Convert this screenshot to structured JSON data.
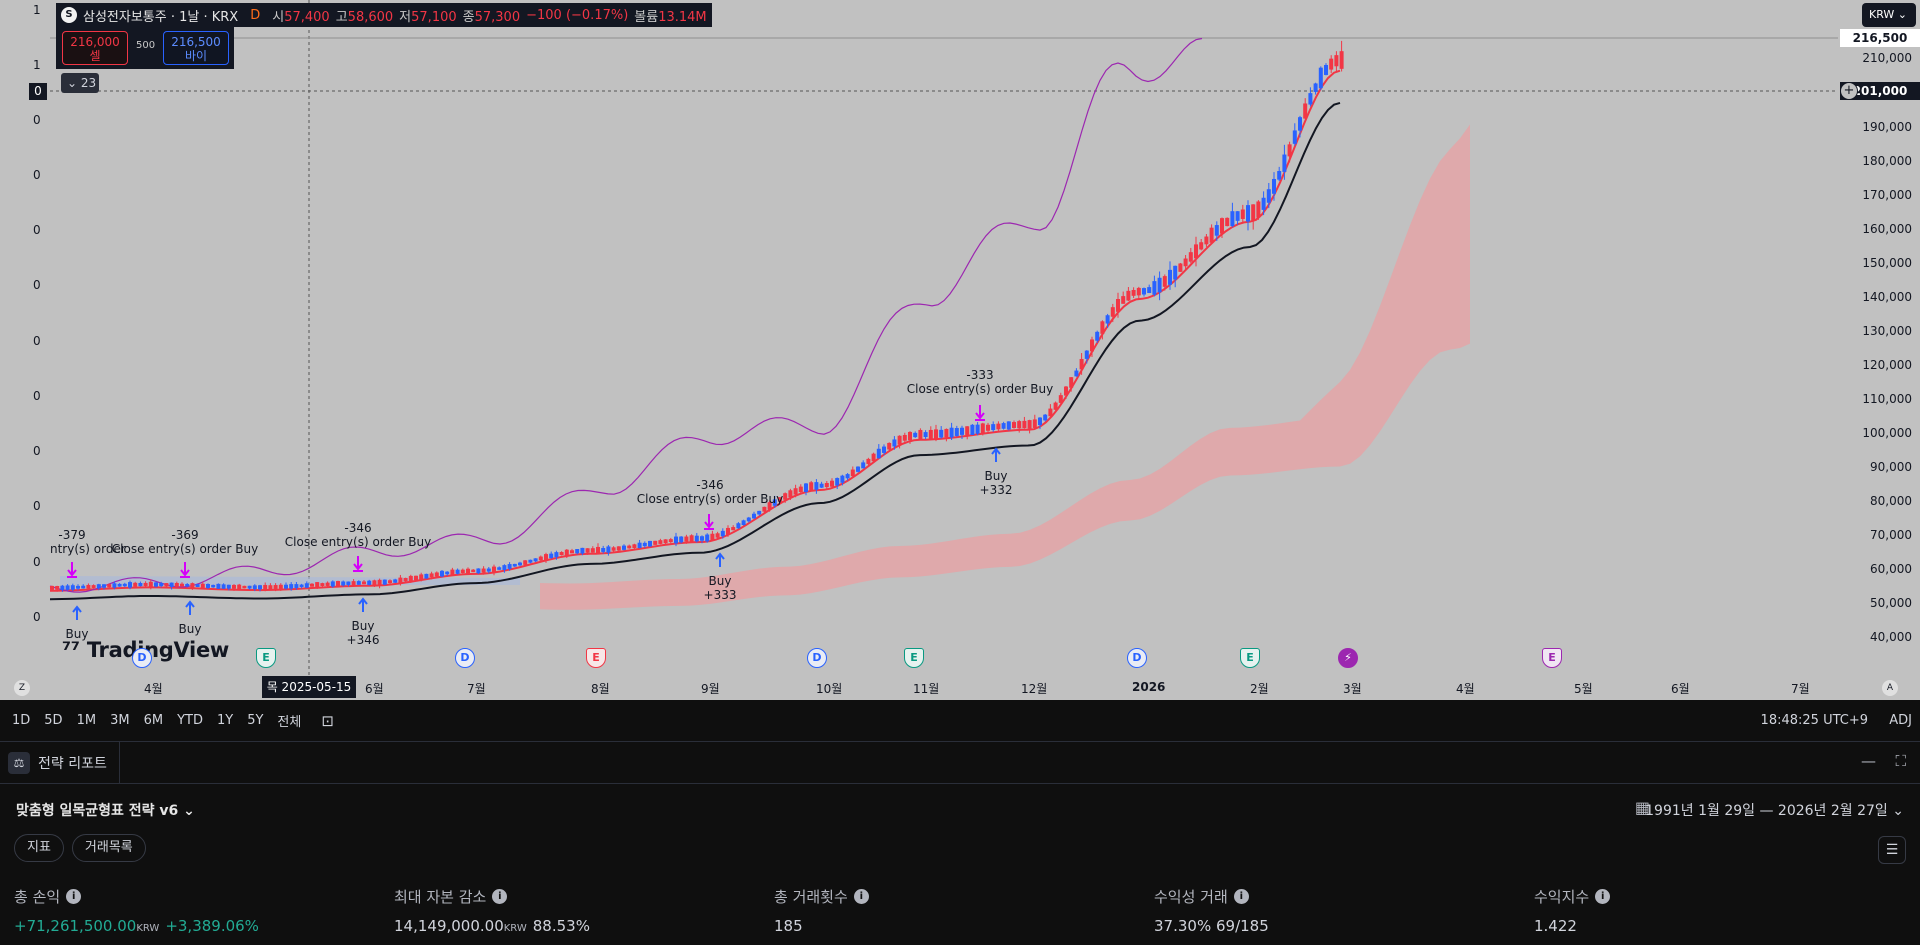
{
  "legend": {
    "symbol_logo": "S",
    "title": "삼성전자보통주 · 1날 · KRX",
    "d_badge": "D",
    "open_k": "시",
    "open_v": "57,400",
    "high_k": "고",
    "high_v": "58,600",
    "low_k": "저",
    "low_v": "57,100",
    "close_k": "종",
    "close_v": "57,300",
    "change": "−100 (−0.17%)",
    "vol_k": "볼륨",
    "vol_v": "13.14M"
  },
  "trade": {
    "sell_price": "216,000",
    "sell_label": "셀",
    "qty": "500",
    "buy_price": "216,500",
    "buy_label": "바이"
  },
  "collapse_chip": "23",
  "currency": "KRW",
  "left_scale": {
    "ticks": [
      "1",
      "1",
      "0",
      "0",
      "0",
      "0",
      "0",
      "0",
      "0",
      "0",
      "0",
      "0"
    ],
    "highlight": "0"
  },
  "price_scale": {
    "ticks": [
      "210,000",
      "190,000",
      "180,000",
      "170,000",
      "160,000",
      "150,000",
      "140,000",
      "130,000",
      "120,000",
      "110,000",
      "100,000",
      "90,000",
      "80,000",
      "70,000",
      "60,000",
      "50,000",
      "40,000"
    ],
    "last_price": "216,500",
    "crosshair_price": "201,000"
  },
  "x_axis": {
    "labels": [
      "4월",
      "6월",
      "7월",
      "8월",
      "9월",
      "10월",
      "11월",
      "12월",
      "2026",
      "2월",
      "3월",
      "4월",
      "5월",
      "6월",
      "7월"
    ],
    "hover_date": "목 2025-05-15",
    "left_btn": "Z",
    "right_btn": "A"
  },
  "events": [
    "D",
    "E",
    "D",
    "E",
    "D",
    "E",
    "D",
    "E",
    "⚡",
    "E"
  ],
  "annotations": {
    "t1": "-379",
    "t1b": "ntry(s) order",
    "t2": "-369",
    "t2b": "Close entry(s) order Buy",
    "t3": "-346",
    "t3b": "Close entry(s) order Buy",
    "t4": "-346",
    "t4b": "Close entry(s) order Buy",
    "t5": "-333",
    "t5b": "Close entry(s) order Buy",
    "b1": "Buy",
    "b2": "Buy",
    "b3": "Buy",
    "b3n": "+346",
    "b4": "Buy",
    "b4n": "+333",
    "b5": "Buy",
    "b5n": "+332"
  },
  "watermark": "TradingView",
  "ranges": [
    "1D",
    "5D",
    "1M",
    "3M",
    "6M",
    "YTD",
    "1Y",
    "5Y",
    "전체"
  ],
  "clock": "18:48:25 UTC+9",
  "adj": "ADJ",
  "report_tab": "전략 리포트",
  "strategy_name": "맞춤형 일목균형표 전략 v6",
  "date_range": "1991년 1월 29일 — 2026년 2월 27일",
  "sub_tabs": [
    "지표",
    "거래목록"
  ],
  "metrics": {
    "net_profit": {
      "label": "총 손익",
      "value": "+71,261,500.00",
      "unit": "KRW",
      "pct": "+3,389.06%"
    },
    "max_dd": {
      "label": "최대 자본 감소",
      "value": "14,149,000.00",
      "unit": "KRW",
      "pct": "88.53%"
    },
    "trades": {
      "label": "총 거래횟수",
      "value": "185"
    },
    "win": {
      "label": "수익성 거래",
      "value": "37.30%",
      "sub": "69/185"
    },
    "pf": {
      "label": "수익지수",
      "value": "1.422"
    }
  },
  "colors": {
    "chart_bg": "#c1c1c1",
    "up": "#f23645",
    "down": "#2962ff",
    "cloud": "#e8a0a3",
    "kijun": "#131722",
    "tenkan": "#f23645",
    "chikou": "#9c27b0",
    "profit": "#22ab94"
  },
  "chart_data": {
    "type": "candlestick",
    "x": [
      "2025-03",
      "2025-04",
      "2025-05",
      "2025-06",
      "2025-07",
      "2025-08",
      "2025-09",
      "2025-10",
      "2025-11",
      "2025-12",
      "2026-01",
      "2026-02"
    ],
    "series": [
      {
        "name": "",
        "values": [
          55000,
          56000,
          55500,
          58000,
          63000,
          68000,
          72000,
          88000,
          100000,
          104000,
          145000,
          205000
        ]
      }
    ]
  }
}
